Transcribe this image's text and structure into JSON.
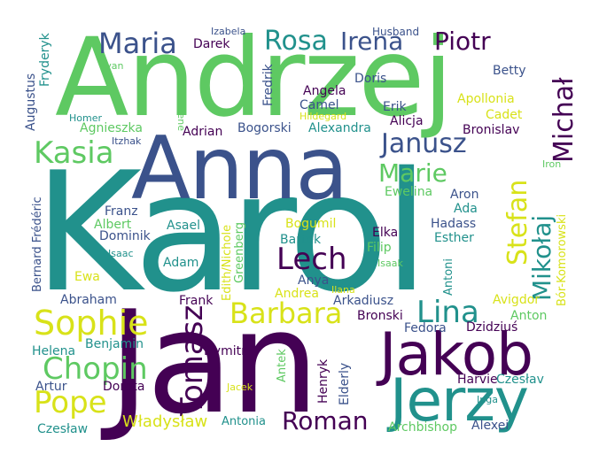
{
  "palette": {
    "background": "#ffffff",
    "dark_purple": "#440154",
    "indigo": "#3b528b",
    "teal": "#21918c",
    "green": "#5ec962",
    "yellow": "#d8e219"
  },
  "words": [
    {
      "text": "Andrzej",
      "color": "#5ec962"
    },
    {
      "text": "Karol",
      "color": "#21918c"
    },
    {
      "text": "Anna",
      "color": "#3b528b"
    },
    {
      "text": "Jan",
      "color": "#440154"
    },
    {
      "text": "Jakob",
      "color": "#440154"
    },
    {
      "text": "Jerzy",
      "color": "#21918c"
    },
    {
      "text": "Maria",
      "color": "#3b528b"
    },
    {
      "text": "Rosa",
      "color": "#21918c"
    },
    {
      "text": "Irena",
      "color": "#3b528b"
    },
    {
      "text": "Piotr",
      "color": "#440154"
    },
    {
      "text": "Kasia",
      "color": "#5ec962"
    },
    {
      "text": "Janusz",
      "color": "#3b528b"
    },
    {
      "text": "Marie",
      "color": "#5ec962"
    },
    {
      "text": "Michał",
      "color": "#440154"
    },
    {
      "text": "Mikołaj",
      "color": "#21918c"
    },
    {
      "text": "Stefan",
      "color": "#d8e219"
    },
    {
      "text": "Lech",
      "color": "#440154"
    },
    {
      "text": "Sophie",
      "color": "#d8e219"
    },
    {
      "text": "Barbara",
      "color": "#d8e219"
    },
    {
      "text": "Lina",
      "color": "#21918c"
    },
    {
      "text": "Chopin",
      "color": "#5ec962"
    },
    {
      "text": "Pope",
      "color": "#d8e219"
    },
    {
      "text": "Tomasz",
      "color": "#440154"
    },
    {
      "text": "Roman",
      "color": "#440154"
    },
    {
      "text": "Władysław",
      "color": "#d8e219"
    },
    {
      "text": "Izabela",
      "color": "#3b528b"
    },
    {
      "text": "Darek",
      "color": "#440154"
    },
    {
      "text": "Husband",
      "color": "#3b528b"
    },
    {
      "text": "Fryderyk",
      "color": "#21918c"
    },
    {
      "text": "Ivan",
      "color": "#5ec962"
    },
    {
      "text": "Augustus",
      "color": "#3b528b"
    },
    {
      "text": "Homer",
      "color": "#21918c"
    },
    {
      "text": "Irene",
      "color": "#5ec962"
    },
    {
      "text": "Fredrik",
      "color": "#3b528b"
    },
    {
      "text": "Doris",
      "color": "#3b528b"
    },
    {
      "text": "Betty",
      "color": "#3b528b"
    },
    {
      "text": "Angela",
      "color": "#440154"
    },
    {
      "text": "Camel",
      "color": "#3b528b"
    },
    {
      "text": "Apollonia",
      "color": "#d8e219"
    },
    {
      "text": "Hildegard",
      "color": "#d8e219"
    },
    {
      "text": "Erik",
      "color": "#3b528b"
    },
    {
      "text": "Cadet",
      "color": "#d8e219"
    },
    {
      "text": "Agnieszka",
      "color": "#5ec962"
    },
    {
      "text": "Itzhak",
      "color": "#3b528b"
    },
    {
      "text": "Adrian",
      "color": "#440154"
    },
    {
      "text": "Bogorski",
      "color": "#3b528b"
    },
    {
      "text": "Alexandra",
      "color": "#21918c"
    },
    {
      "text": "Alicja",
      "color": "#440154"
    },
    {
      "text": "Bronislav",
      "color": "#440154"
    },
    {
      "text": "Iron",
      "color": "#5ec962"
    },
    {
      "text": "Ewelina",
      "color": "#5ec962"
    },
    {
      "text": "Aron",
      "color": "#3b528b"
    },
    {
      "text": "Ada",
      "color": "#21918c"
    },
    {
      "text": "Franz",
      "color": "#3b528b"
    },
    {
      "text": "Albert",
      "color": "#5ec962"
    },
    {
      "text": "Asael",
      "color": "#21918c"
    },
    {
      "text": "Dominik",
      "color": "#3b528b"
    },
    {
      "text": "Bogumil",
      "color": "#d8e219"
    },
    {
      "text": "Bartek",
      "color": "#21918c"
    },
    {
      "text": "Elka",
      "color": "#440154"
    },
    {
      "text": "Filip",
      "color": "#5ec962"
    },
    {
      "text": "Hadass",
      "color": "#3b528b"
    },
    {
      "text": "Esther",
      "color": "#21918c"
    },
    {
      "text": "Isaac",
      "color": "#21918c"
    },
    {
      "text": "Isaak",
      "color": "#5ec962"
    },
    {
      "text": "Bór-Komorowski",
      "color": "#d8e219"
    },
    {
      "text": "Adam",
      "color": "#21918c"
    },
    {
      "text": "Anya",
      "color": "#3b528b"
    },
    {
      "text": "Ewa",
      "color": "#d8e219"
    },
    {
      "text": "Andrea",
      "color": "#d8e219"
    },
    {
      "text": "Ilana",
      "color": "#d8e219"
    },
    {
      "text": "Abraham",
      "color": "#3b528b"
    },
    {
      "text": "Bernard Frédéric",
      "color": "#3b528b"
    },
    {
      "text": "Edith/Nichole",
      "color": "#d8e219"
    },
    {
      "text": "Greenberg",
      "color": "#5ec962"
    },
    {
      "text": "Antoni",
      "color": "#21918c"
    },
    {
      "text": "Arkadiusz",
      "color": "#3b528b"
    },
    {
      "text": "Avigdor",
      "color": "#d8e219"
    },
    {
      "text": "Frank",
      "color": "#440154"
    },
    {
      "text": "Bronski",
      "color": "#440154"
    },
    {
      "text": "Anton",
      "color": "#5ec962"
    },
    {
      "text": "Benjamin",
      "color": "#21918c"
    },
    {
      "text": "Fedora",
      "color": "#3b528b"
    },
    {
      "text": "Dzidziuś",
      "color": "#440154"
    },
    {
      "text": "Helena",
      "color": "#21918c"
    },
    {
      "text": "Dymitr",
      "color": "#440154"
    },
    {
      "text": "Antek",
      "color": "#5ec962"
    },
    {
      "text": "Henryk",
      "color": "#440154"
    },
    {
      "text": "Elderly",
      "color": "#3b528b"
    },
    {
      "text": "Harvie",
      "color": "#440154"
    },
    {
      "text": "Czesłav",
      "color": "#21918c"
    },
    {
      "text": "Artur",
      "color": "#3b528b"
    },
    {
      "text": "Dorota",
      "color": "#440154"
    },
    {
      "text": "Jacek",
      "color": "#d8e219"
    },
    {
      "text": "Inga",
      "color": "#21918c"
    },
    {
      "text": "Czesław",
      "color": "#21918c"
    },
    {
      "text": "Antonia",
      "color": "#21918c"
    },
    {
      "text": "Archbishop",
      "color": "#5ec962"
    },
    {
      "text": "Alexei",
      "color": "#3b528b"
    }
  ]
}
